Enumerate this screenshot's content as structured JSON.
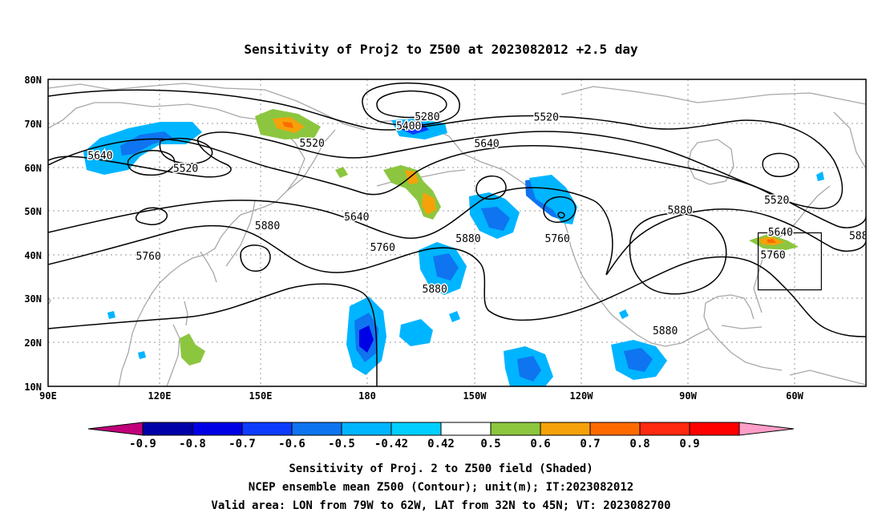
{
  "title": "Sensitivity of Proj2 to Z500 at 2023082012 +2.5 day",
  "map": {
    "lat_labels": [
      "80N",
      "70N",
      "60N",
      "50N",
      "40N",
      "30N",
      "20N",
      "10N"
    ],
    "lon_labels": [
      "90E",
      "120E",
      "150E",
      "180",
      "150W",
      "120W",
      "90W",
      "60W"
    ],
    "lon_range": [
      90,
      310
    ],
    "lat_range": [
      10,
      80
    ],
    "grid": true,
    "colors": {
      "frame": "#000000",
      "coast": "#a8a8a8",
      "grid": "#9a9a9a",
      "contour": "#000000"
    }
  },
  "contour_labels": [
    {
      "text": "5280",
      "lon": 192,
      "lat": 71.3
    },
    {
      "text": "5400",
      "lon": 187,
      "lat": 69.2
    },
    {
      "text": "5520",
      "lon": 224,
      "lat": 71.2
    },
    {
      "text": "5520",
      "lon": 161,
      "lat": 65.3
    },
    {
      "text": "5640",
      "lon": 104,
      "lat": 62.5
    },
    {
      "text": "5520",
      "lon": 127,
      "lat": 59.5
    },
    {
      "text": "5640",
      "lon": 208,
      "lat": 65.2
    },
    {
      "text": "5520",
      "lon": 286,
      "lat": 52.3
    },
    {
      "text": "5640",
      "lon": 173,
      "lat": 48.5
    },
    {
      "text": "5880",
      "lon": 149,
      "lat": 46.5
    },
    {
      "text": "5760",
      "lon": 180,
      "lat": 41.5
    },
    {
      "text": "5880",
      "lon": 203,
      "lat": 43.5
    },
    {
      "text": "5760",
      "lon": 227,
      "lat": 43.5
    },
    {
      "text": "5880",
      "lon": 260,
      "lat": 50.0
    },
    {
      "text": "5640",
      "lon": 287,
      "lat": 45.0
    },
    {
      "text": "5760",
      "lon": 117,
      "lat": 39.5
    },
    {
      "text": "5880",
      "lon": 194,
      "lat": 32.0
    },
    {
      "text": "5760",
      "lon": 285,
      "lat": 39.8
    },
    {
      "text": "5880",
      "lon": 256,
      "lat": 22.5
    },
    {
      "text": "588",
      "lon": 308,
      "lat": 44.2
    }
  ],
  "valid_area_box": {
    "lon_range": [
      281,
      298
    ],
    "lat_range": [
      32,
      45
    ]
  },
  "colorbar": {
    "labels": [
      "-0.9",
      "-0.8",
      "-0.7",
      "-0.6",
      "-0.5",
      "-0.42",
      "0.42",
      "0.5",
      "0.6",
      "0.7",
      "0.8",
      "0.9"
    ],
    "colors": [
      "#c1007a",
      "#0000a8",
      "#0000e6",
      "#0d3cff",
      "#0f74f0",
      "#00b5ff",
      "#00cfff",
      "#ffffff",
      "#8cc63f",
      "#f5a20a",
      "#ff6a00",
      "#ff2a10",
      "#ff0000",
      "#ff9ec8"
    ]
  },
  "captions": [
    "Sensitivity of Proj. 2 to Z500 field (Shaded)",
    "NCEP ensemble mean Z500 (Contour); unit(m); IT:2023082012",
    "Valid area: LON from 79W to 62W, LAT from 32N to 45N; VT: 2023082700"
  ]
}
